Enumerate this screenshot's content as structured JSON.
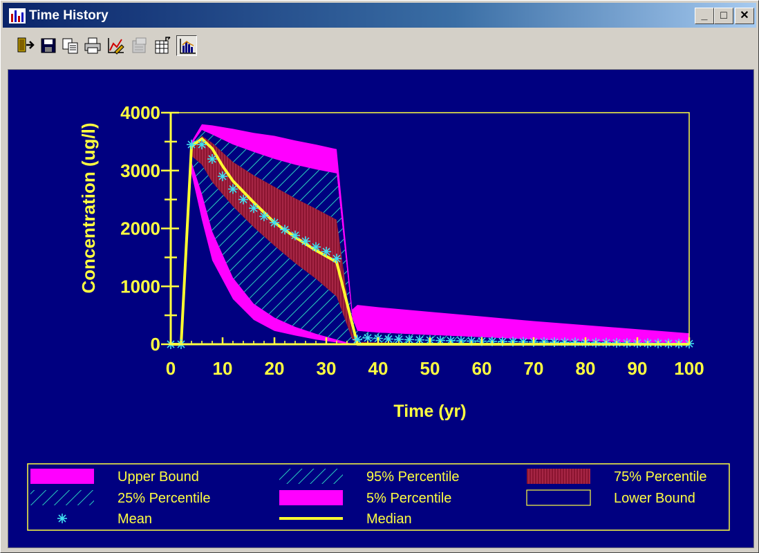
{
  "window": {
    "title": "Time History",
    "controls": {
      "minimize": "_",
      "maximize": "□",
      "close": "✕"
    }
  },
  "toolbar": {
    "tools": [
      {
        "name": "exit-icon"
      },
      {
        "name": "save-icon"
      },
      {
        "name": "copy-icon"
      },
      {
        "name": "print-icon"
      },
      {
        "name": "chart-properties-icon"
      },
      {
        "name": "properties-disabled-icon"
      },
      {
        "name": "table-view-icon"
      },
      {
        "name": "chart-view-icon",
        "active": true
      }
    ]
  },
  "colors": {
    "background": "#000080",
    "axis": "#ffff40",
    "magenta": "#ff00ff",
    "maroon": "#8b1430",
    "hatch": "#2bd3c0",
    "mean": "#40e0f0",
    "median": "#ffff30"
  },
  "chart_data": {
    "type": "area",
    "title": "",
    "xlabel": "Time (yr)",
    "ylabel": "Concentration (ug/l)",
    "xlim": [
      0,
      100
    ],
    "ylim": [
      0,
      4000
    ],
    "xticks": [
      0,
      10,
      20,
      30,
      40,
      50,
      60,
      70,
      80,
      90,
      100
    ],
    "yticks": [
      0,
      1000,
      2000,
      3000,
      4000
    ],
    "legend_placement": "bottom",
    "bands": [
      {
        "name": "Upper Bound",
        "x": [
          0,
          2,
          4,
          6,
          8,
          12,
          16,
          20,
          24,
          28,
          32,
          35,
          36,
          40,
          50,
          60,
          70,
          80,
          90,
          100
        ],
        "values": [
          0,
          0,
          3500,
          3800,
          3780,
          3720,
          3650,
          3600,
          3520,
          3450,
          3370,
          600,
          680,
          640,
          560,
          480,
          400,
          330,
          260,
          190
        ]
      },
      {
        "name": "95% Percentile",
        "x": [
          0,
          2,
          4,
          6,
          8,
          12,
          16,
          20,
          24,
          28,
          32,
          35,
          36,
          40,
          50,
          60,
          70,
          80,
          90,
          100
        ],
        "values": [
          0,
          0,
          3450,
          3700,
          3620,
          3450,
          3320,
          3200,
          3100,
          3020,
          2950,
          450,
          230,
          200,
          160,
          120,
          80,
          50,
          30,
          20
        ]
      },
      {
        "name": "75% Percentile",
        "x": [
          0,
          2,
          4,
          6,
          8,
          12,
          16,
          20,
          24,
          28,
          32,
          35,
          36,
          40,
          50,
          60,
          70,
          80,
          90,
          100
        ],
        "values": [
          0,
          0,
          3400,
          3600,
          3480,
          3150,
          2920,
          2720,
          2520,
          2340,
          2150,
          200,
          40,
          30,
          20,
          15,
          10,
          5,
          0,
          0
        ]
      },
      {
        "name": "25% Percentile",
        "x": [
          0,
          2,
          4,
          6,
          8,
          12,
          16,
          20,
          24,
          28,
          32,
          35,
          36,
          40,
          50,
          60,
          70,
          80,
          90,
          100
        ],
        "values": [
          0,
          0,
          3250,
          3100,
          2800,
          2380,
          2020,
          1700,
          1400,
          1130,
          820,
          80,
          0,
          0,
          0,
          0,
          0,
          0,
          0,
          0
        ]
      },
      {
        "name": "5% Percentile",
        "x": [
          0,
          2,
          4,
          6,
          8,
          12,
          16,
          20,
          24,
          28,
          32,
          35,
          36,
          40,
          50,
          60,
          70,
          80,
          90,
          100
        ],
        "values": [
          0,
          0,
          3150,
          2600,
          1950,
          1150,
          700,
          460,
          300,
          180,
          80,
          10,
          0,
          0,
          0,
          0,
          0,
          0,
          0,
          0
        ]
      },
      {
        "name": "Lower Bound",
        "x": [
          0,
          2,
          4,
          6,
          8,
          12,
          16,
          20,
          24,
          28,
          32,
          35,
          36,
          40,
          50,
          60,
          70,
          80,
          90,
          100
        ],
        "values": [
          0,
          0,
          2950,
          2150,
          1450,
          780,
          420,
          230,
          150,
          80,
          30,
          0,
          0,
          0,
          0,
          0,
          0,
          0,
          0,
          0
        ]
      }
    ],
    "mean": {
      "name": "Mean",
      "x": [
        0,
        2,
        4,
        6,
        8,
        10,
        12,
        14,
        16,
        18,
        20,
        22,
        24,
        26,
        28,
        30,
        32,
        36,
        38,
        40,
        42,
        44,
        46,
        48,
        50,
        52,
        54,
        56,
        58,
        60,
        62,
        64,
        66,
        68,
        70,
        72,
        74,
        76,
        78,
        80,
        82,
        84,
        86,
        88,
        90,
        92,
        94,
        96,
        98,
        100
      ],
      "values": [
        0,
        0,
        3450,
        3450,
        3200,
        2900,
        2680,
        2500,
        2350,
        2210,
        2100,
        1980,
        1880,
        1780,
        1680,
        1600,
        1480,
        80,
        110,
        100,
        90,
        85,
        80,
        75,
        70,
        65,
        62,
        58,
        55,
        52,
        50,
        47,
        45,
        42,
        40,
        38,
        36,
        34,
        32,
        30,
        28,
        26,
        24,
        22,
        20,
        18,
        16,
        14,
        12,
        10
      ]
    },
    "median": {
      "name": "Median",
      "x": [
        0,
        2,
        4,
        6,
        8,
        10,
        12,
        16,
        20,
        24,
        28,
        32,
        36,
        40,
        50,
        60,
        70,
        80,
        90,
        100
      ],
      "values": [
        0,
        0,
        3420,
        3550,
        3380,
        3080,
        2820,
        2450,
        2100,
        1850,
        1620,
        1420,
        0,
        0,
        0,
        0,
        0,
        0,
        0,
        0
      ]
    },
    "legend": [
      "Upper Bound",
      "95% Percentile",
      "75% Percentile",
      "25% Percentile",
      "5% Percentile",
      "Lower Bound",
      "Mean",
      "Median"
    ]
  }
}
